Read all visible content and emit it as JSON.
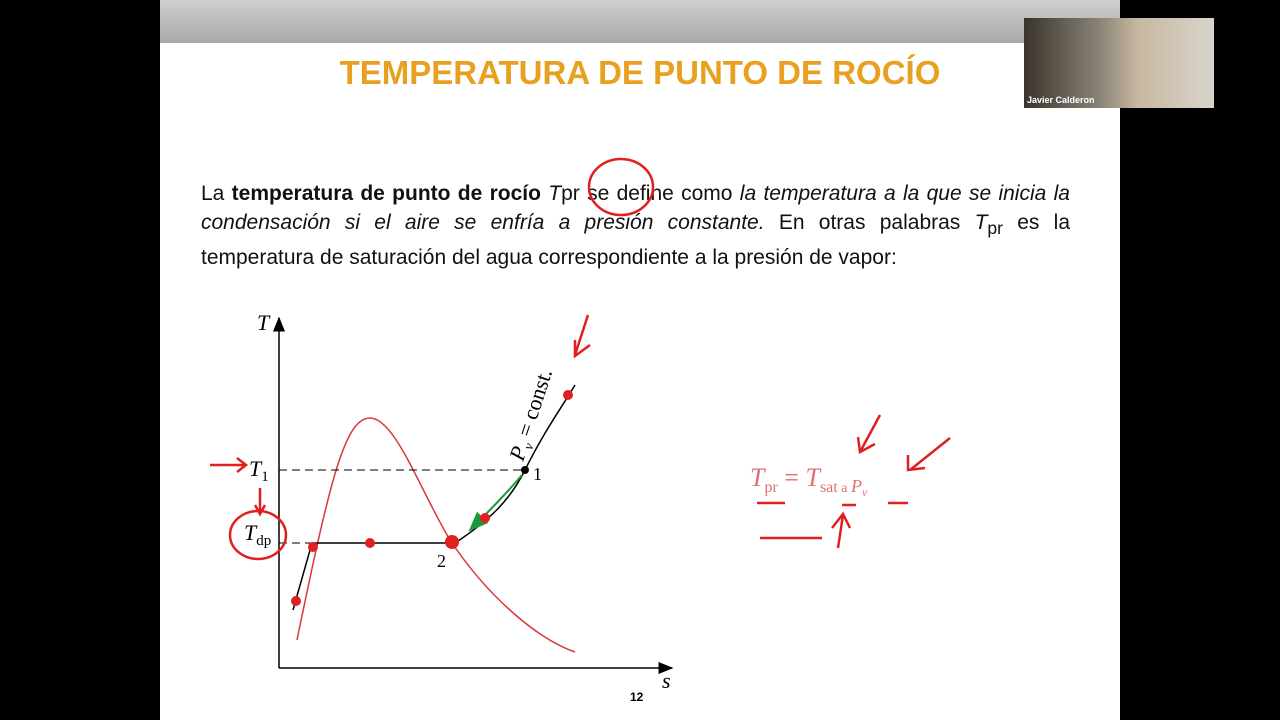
{
  "slide": {
    "title": "TEMPERATURA DE PUNTO DE ROCÍO",
    "paragraph": [
      "La ",
      "temperatura de punto de rocío",
      "T",
      "pr se define como ",
      "la temperatura a la que se inicia la condensación si el aire se enfría a presión constante.",
      " En otras palabras ",
      "T",
      "pr",
      " es la temperatura de saturación del agua correspondiente a la presión de vapor:"
    ],
    "diagram": {
      "y_axis": "T",
      "x_axis": "s",
      "t1": [
        "T",
        "1"
      ],
      "tdp": [
        "T",
        "dp"
      ],
      "isobar": [
        "P",
        "v",
        " = const."
      ],
      "point1": "1",
      "point2": "2"
    },
    "equation": [
      "T",
      "pr",
      " = ",
      "T",
      "sat",
      " a ",
      "P",
      "v"
    ],
    "page_number": "12"
  },
  "webcam": {
    "name": "Javier Calderon"
  }
}
